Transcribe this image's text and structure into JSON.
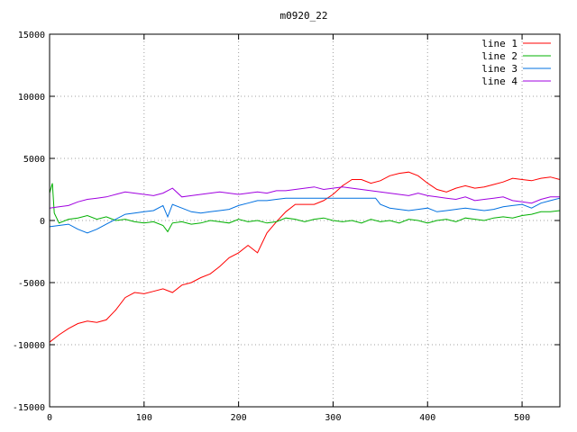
{
  "chart_data": {
    "type": "line",
    "title": "m0920_22",
    "xlabel": "",
    "ylabel": "",
    "xlim": [
      0,
      540
    ],
    "ylim": [
      -15000,
      15000
    ],
    "xticks": [
      0,
      100,
      200,
      300,
      400,
      500
    ],
    "yticks": [
      -15000,
      -10000,
      -5000,
      0,
      5000,
      10000,
      15000
    ],
    "grid": true,
    "legend_position": "top-right",
    "series": [
      {
        "name": "line 1",
        "color": "#ff0000",
        "x": [
          0,
          10,
          20,
          30,
          40,
          50,
          60,
          70,
          80,
          90,
          100,
          110,
          120,
          130,
          140,
          150,
          160,
          170,
          180,
          190,
          200,
          210,
          220,
          230,
          240,
          250,
          260,
          270,
          280,
          290,
          300,
          310,
          320,
          330,
          340,
          350,
          360,
          370,
          380,
          390,
          400,
          410,
          420,
          430,
          440,
          450,
          460,
          470,
          480,
          490,
          500,
          510,
          520,
          530,
          540
        ],
        "y": [
          -9800,
          -9200,
          -8700,
          -8300,
          -8100,
          -8200,
          -8000,
          -7200,
          -6200,
          -5800,
          -5900,
          -5700,
          -5500,
          -5800,
          -5200,
          -5000,
          -4600,
          -4300,
          -3700,
          -3000,
          -2600,
          -2000,
          -2600,
          -1000,
          -100,
          700,
          1300,
          1300,
          1300,
          1600,
          2100,
          2800,
          3300,
          3300,
          3000,
          3200,
          3600,
          3800,
          3900,
          3600,
          3000,
          2500,
          2300,
          2600,
          2800,
          2600,
          2700,
          2900,
          3100,
          3400,
          3300,
          3200,
          3400,
          3500,
          3300
        ]
      },
      {
        "name": "line 2",
        "color": "#00b000",
        "x": [
          0,
          3,
          5,
          10,
          20,
          30,
          40,
          50,
          60,
          70,
          80,
          90,
          100,
          110,
          120,
          125,
          130,
          140,
          150,
          160,
          170,
          180,
          190,
          200,
          210,
          220,
          230,
          240,
          250,
          260,
          270,
          280,
          290,
          300,
          310,
          320,
          330,
          340,
          350,
          360,
          370,
          380,
          390,
          400,
          410,
          420,
          430,
          440,
          450,
          460,
          470,
          480,
          490,
          500,
          510,
          520,
          530,
          540
        ],
        "y": [
          2200,
          3000,
          600,
          -200,
          100,
          200,
          400,
          100,
          300,
          0,
          100,
          -100,
          -200,
          -100,
          -400,
          -900,
          -200,
          -100,
          -300,
          -200,
          0,
          -100,
          -200,
          100,
          -100,
          0,
          -200,
          -100,
          200,
          100,
          -100,
          100,
          200,
          0,
          -100,
          0,
          -200,
          100,
          -100,
          0,
          -200,
          100,
          0,
          -200,
          0,
          100,
          -100,
          200,
          100,
          0,
          200,
          300,
          200,
          400,
          500,
          700,
          700,
          800
        ]
      },
      {
        "name": "line 3",
        "color": "#0070e0",
        "x": [
          0,
          10,
          20,
          30,
          40,
          50,
          60,
          70,
          80,
          90,
          100,
          110,
          120,
          125,
          130,
          140,
          150,
          160,
          170,
          180,
          190,
          200,
          210,
          220,
          230,
          240,
          250,
          260,
          270,
          280,
          290,
          300,
          310,
          320,
          330,
          340,
          345,
          350,
          360,
          370,
          380,
          390,
          400,
          410,
          420,
          430,
          440,
          450,
          460,
          470,
          480,
          490,
          500,
          510,
          520,
          530,
          540
        ],
        "y": [
          -500,
          -400,
          -300,
          -700,
          -1000,
          -700,
          -300,
          100,
          500,
          600,
          700,
          800,
          1200,
          300,
          1300,
          1000,
          700,
          600,
          700,
          800,
          900,
          1200,
          1400,
          1600,
          1600,
          1700,
          1800,
          1800,
          1800,
          1800,
          1800,
          1800,
          1800,
          1800,
          1800,
          1800,
          1800,
          1300,
          1000,
          900,
          800,
          900,
          1000,
          700,
          800,
          900,
          1000,
          900,
          800,
          900,
          1100,
          1200,
          1300,
          1000,
          1400,
          1600,
          1800
        ]
      },
      {
        "name": "line 4",
        "color": "#a000e0",
        "x": [
          0,
          10,
          20,
          30,
          40,
          50,
          60,
          70,
          80,
          90,
          100,
          110,
          120,
          130,
          140,
          150,
          160,
          170,
          180,
          190,
          200,
          210,
          220,
          230,
          240,
          250,
          260,
          270,
          280,
          290,
          300,
          310,
          320,
          330,
          340,
          350,
          360,
          370,
          380,
          390,
          400,
          410,
          420,
          430,
          440,
          450,
          460,
          470,
          480,
          490,
          500,
          510,
          520,
          530,
          540
        ],
        "y": [
          1000,
          1100,
          1200,
          1500,
          1700,
          1800,
          1900,
          2100,
          2300,
          2200,
          2100,
          2000,
          2200,
          2600,
          1900,
          2000,
          2100,
          2200,
          2300,
          2200,
          2100,
          2200,
          2300,
          2200,
          2400,
          2400,
          2500,
          2600,
          2700,
          2500,
          2600,
          2700,
          2600,
          2500,
          2400,
          2300,
          2200,
          2100,
          2000,
          2200,
          2000,
          1900,
          1800,
          1700,
          1900,
          1600,
          1700,
          1800,
          1900,
          1600,
          1500,
          1400,
          1700,
          1900,
          1900
        ]
      }
    ]
  }
}
